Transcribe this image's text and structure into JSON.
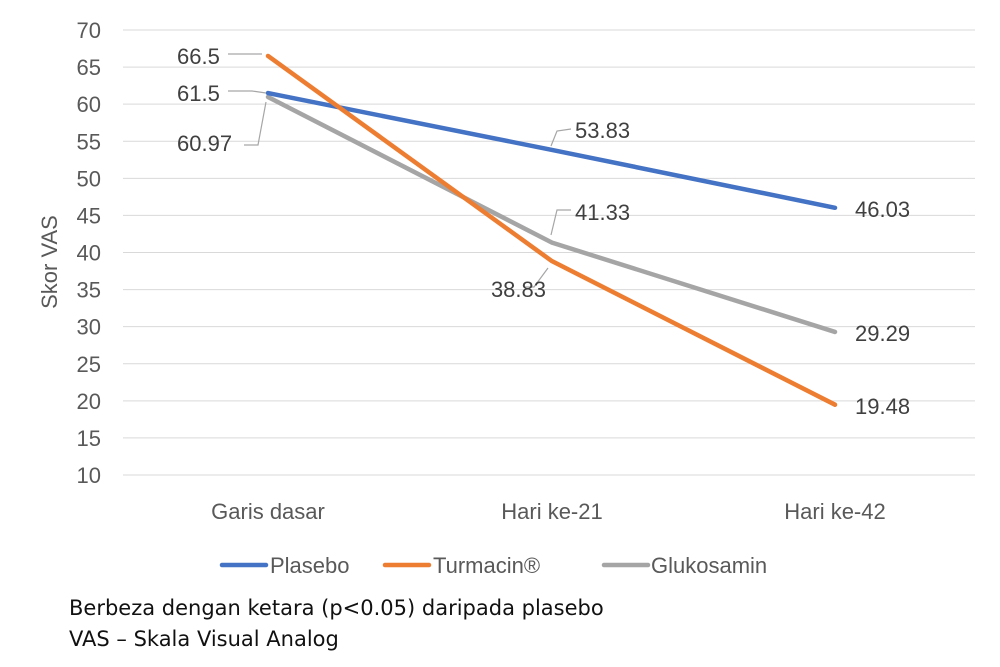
{
  "chart_data": {
    "type": "line",
    "categories": [
      "Garis dasar",
      "Hari ke-21",
      "Hari ke-42"
    ],
    "series": [
      {
        "name": "Plasebo",
        "values": [
          61.5,
          53.83,
          46.03
        ],
        "labels": [
          "61.5",
          "53.83",
          "46.03"
        ],
        "color": "#4472C4"
      },
      {
        "name": "Turmacin®",
        "values": [
          66.5,
          38.83,
          19.48
        ],
        "labels": [
          "66.5",
          "38.83",
          "19.48"
        ],
        "color": "#ED7D31"
      },
      {
        "name": "Glukosamin",
        "values": [
          60.97,
          41.33,
          29.29
        ],
        "labels": [
          "60.97",
          "41.33",
          "29.29"
        ],
        "color": "#A5A5A5"
      }
    ],
    "ylabel": "Skor VAS",
    "ylim": [
      10,
      70
    ],
    "yticks": [
      10,
      15,
      20,
      25,
      30,
      35,
      40,
      45,
      50,
      55,
      60,
      65,
      70
    ],
    "grid": true,
    "legend": "bottom"
  },
  "footnotes": [
    "Berbeza dengan ketara (p<0.05) daripada plasebo",
    "VAS – Skala Visual Analog"
  ]
}
